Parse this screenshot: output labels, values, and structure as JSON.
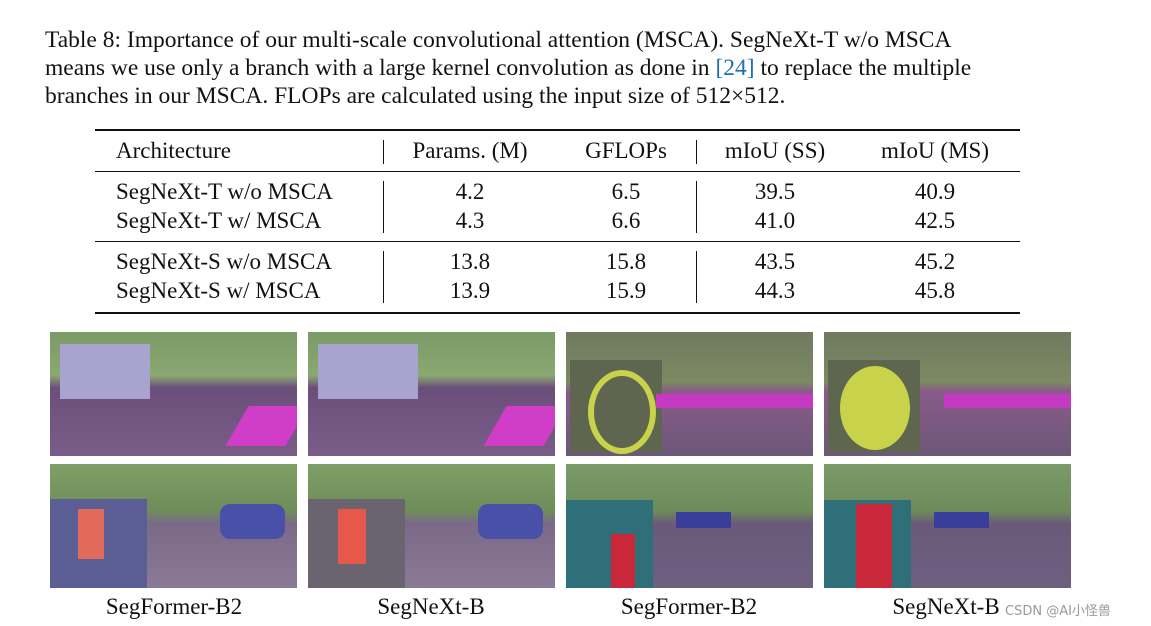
{
  "caption": {
    "line1": "Table 8: Importance of our multi-scale convolutional attention (MSCA). SegNeXt-T w/o MSCA",
    "line2_before": "means we use only a branch with a large kernel convolution as done in ",
    "link": "[24]",
    "line2_after": " to replace the multiple",
    "line3": "branches in our MSCA. FLOPs are calculated using the input size of 512×512."
  },
  "table": {
    "headers": [
      "Architecture",
      "Params. (M)",
      "GFLOPs",
      "mIoU (SS)",
      "mIoU (MS)"
    ],
    "groups": [
      [
        [
          "SegNeXt-T w/o MSCA",
          "4.2",
          "6.5",
          "39.5",
          "40.9"
        ],
        [
          "SegNeXt-T w/ MSCA",
          "4.3",
          "6.6",
          "41.0",
          "42.5"
        ]
      ],
      [
        [
          "SegNeXt-S w/o MSCA",
          "13.8",
          "15.8",
          "43.5",
          "45.2"
        ],
        [
          "SegNeXt-S w/ MSCA",
          "13.9",
          "15.9",
          "44.3",
          "45.8"
        ]
      ]
    ]
  },
  "figure": {
    "labels": [
      "SegFormer-B2",
      "SegNeXt-B",
      "SegFormer-B2",
      "SegNeXt-B"
    ]
  },
  "watermark": "CSDN @AI小怪兽"
}
